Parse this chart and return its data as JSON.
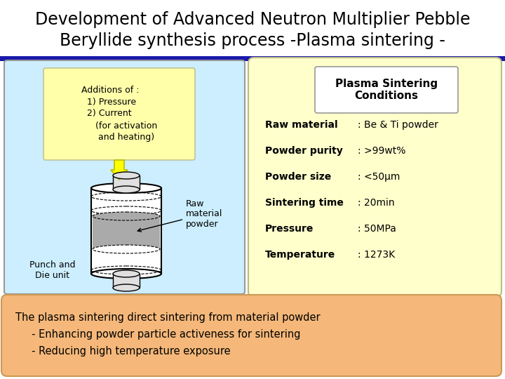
{
  "title_line1": "Development of Advanced Neutron Multiplier Pebble",
  "title_line2": "Beryllide synthesis process -Plasma sintering -",
  "title_fontsize": 17,
  "bg_color": "#ffffff",
  "header_bar_color": "#1a1aaa",
  "left_box_bg": "#cceeff",
  "yellow_box_bg": "#ffffaa",
  "right_box_bg": "#ffffcc",
  "bottom_box_bg": "#f5b87a",
  "plasma_title": "Plasma Sintering\nConditions",
  "additions_text": "Additions of :\n  1) Pressure\n  2) Current\n     (for activation\n      and heating)",
  "raw_material_label": "Raw\nmaterial\npowder",
  "punch_die_label": "Punch and\nDie unit",
  "conditions": [
    [
      "Raw material",
      ": Be & Ti powder"
    ],
    [
      "Powder purity",
      ": >99wt%"
    ],
    [
      "Powder size",
      ": <50μm"
    ],
    [
      "Sintering time",
      ": 20min"
    ],
    [
      "Pressure",
      ": 50MPa"
    ],
    [
      "Temperature",
      ": 1273K"
    ]
  ],
  "bottom_text_line1": "The plasma sintering direct sintering from material powder",
  "bottom_text_line2": "     - Enhancing powder particle activeness for sintering",
  "bottom_text_line3": "     - Reducing high temperature exposure"
}
